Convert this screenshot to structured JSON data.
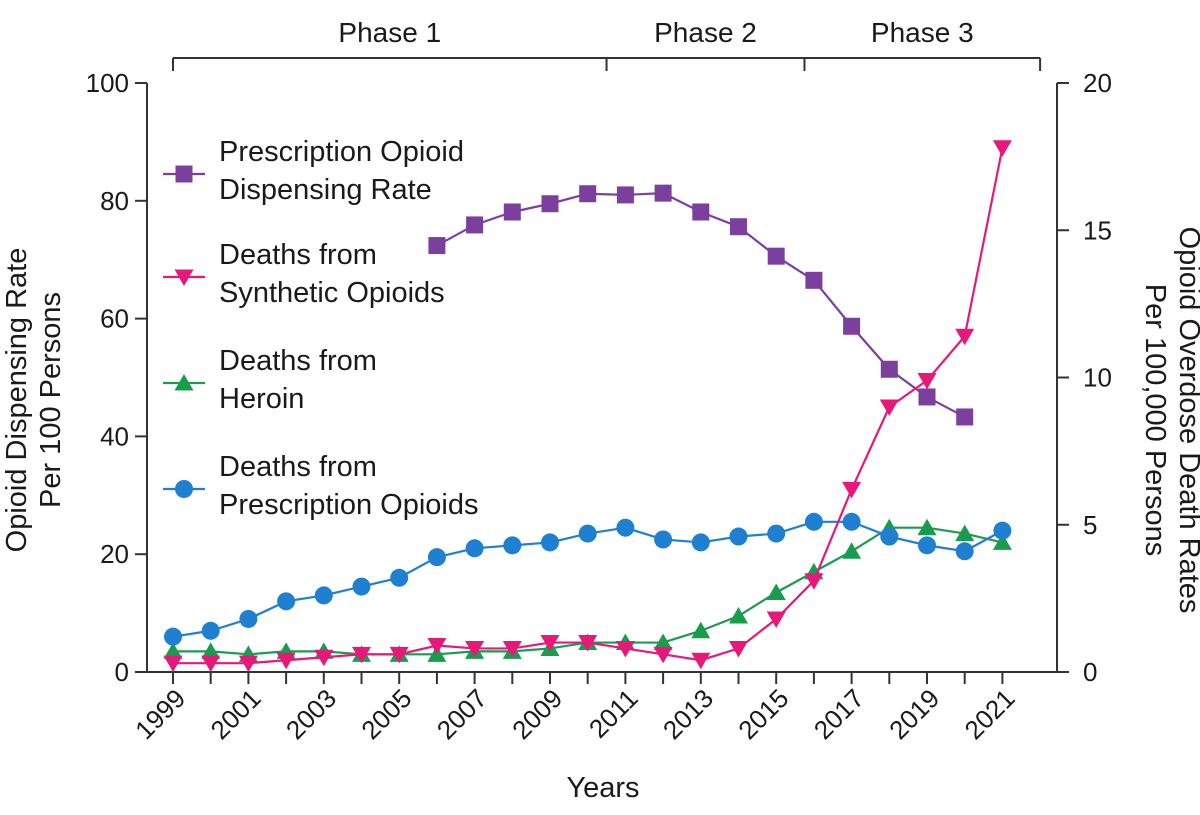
{
  "chart_data": {
    "type": "line",
    "xlabel": "Years",
    "ylabel_left": "Opioid Dispensing Rate\nPer 100 Persons",
    "ylabel_right": "Opioid Overdose Death Rates\nPer 100,000 Persons",
    "xlim": [
      1999,
      2021
    ],
    "ylim_left": [
      0,
      100
    ],
    "ylim_right": [
      0,
      20
    ],
    "x_ticks": [
      1999,
      2001,
      2003,
      2005,
      2007,
      2009,
      2011,
      2013,
      2015,
      2017,
      2019,
      2021
    ],
    "y_ticks_left": [
      0,
      20,
      40,
      60,
      80,
      100
    ],
    "y_ticks_right": [
      0,
      5,
      10,
      15,
      20
    ],
    "grid": false,
    "legend_position": "top-left",
    "phases": [
      {
        "label": "Phase 1",
        "start": 1999,
        "end": 2010.5
      },
      {
        "label": "Phase 2",
        "start": 2010.5,
        "end": 2015.75
      },
      {
        "label": "Phase 3",
        "start": 2015.75,
        "end": 2022
      }
    ],
    "series": [
      {
        "name": "Prescription Opioid\nDispensing Rate",
        "axis": "left",
        "color": "#7b3f9e",
        "marker": "square",
        "x": [
          2006,
          2007,
          2008,
          2009,
          2010,
          2011,
          2012,
          2013,
          2014,
          2015,
          2016,
          2017,
          2018,
          2019,
          2020
        ],
        "values": [
          72.4,
          75.9,
          78.1,
          79.5,
          81.2,
          81.0,
          81.3,
          78.1,
          75.6,
          70.6,
          66.5,
          58.7,
          51.4,
          46.7,
          43.3
        ]
      },
      {
        "name": "Deaths from\nSynthetic Opioids",
        "axis": "right",
        "color": "#e6197b",
        "marker": "triangle-down",
        "x": [
          1999,
          2000,
          2001,
          2002,
          2003,
          2004,
          2005,
          2006,
          2007,
          2008,
          2009,
          2010,
          2011,
          2012,
          2013,
          2014,
          2015,
          2016,
          2017,
          2018,
          2019,
          2020,
          2021
        ],
        "values": [
          0.3,
          0.3,
          0.3,
          0.4,
          0.5,
          0.6,
          0.6,
          0.9,
          0.8,
          0.8,
          1.0,
          1.0,
          0.8,
          0.6,
          0.4,
          0.8,
          1.8,
          3.1,
          6.2,
          9.0,
          9.9,
          11.4,
          17.8
        ]
      },
      {
        "name": "Deaths from\nHeroin",
        "axis": "right",
        "color": "#1a9c4e",
        "marker": "triangle-up",
        "x": [
          1999,
          2000,
          2001,
          2002,
          2003,
          2004,
          2005,
          2006,
          2007,
          2008,
          2009,
          2010,
          2011,
          2012,
          2013,
          2014,
          2015,
          2016,
          2017,
          2018,
          2019,
          2020,
          2021
        ],
        "values": [
          0.7,
          0.7,
          0.6,
          0.7,
          0.7,
          0.6,
          0.6,
          0.6,
          0.7,
          0.7,
          0.8,
          1.0,
          1.0,
          1.0,
          1.4,
          1.9,
          2.7,
          3.4,
          4.1,
          4.9,
          4.9,
          4.7,
          4.4
        ]
      },
      {
        "name": "Deaths from\nPrescription Opioids",
        "axis": "right",
        "color": "#1f7fd1",
        "marker": "circle",
        "x": [
          1999,
          2000,
          2001,
          2002,
          2003,
          2004,
          2005,
          2006,
          2007,
          2008,
          2009,
          2010,
          2011,
          2012,
          2013,
          2014,
          2015,
          2016,
          2017,
          2018,
          2019,
          2020,
          2021
        ],
        "values": [
          1.2,
          1.4,
          1.8,
          2.4,
          2.6,
          2.9,
          3.2,
          3.9,
          4.2,
          4.3,
          4.4,
          4.7,
          4.9,
          4.5,
          4.4,
          4.6,
          4.7,
          5.1,
          5.1,
          4.6,
          4.3,
          4.1,
          4.8
        ]
      }
    ]
  }
}
